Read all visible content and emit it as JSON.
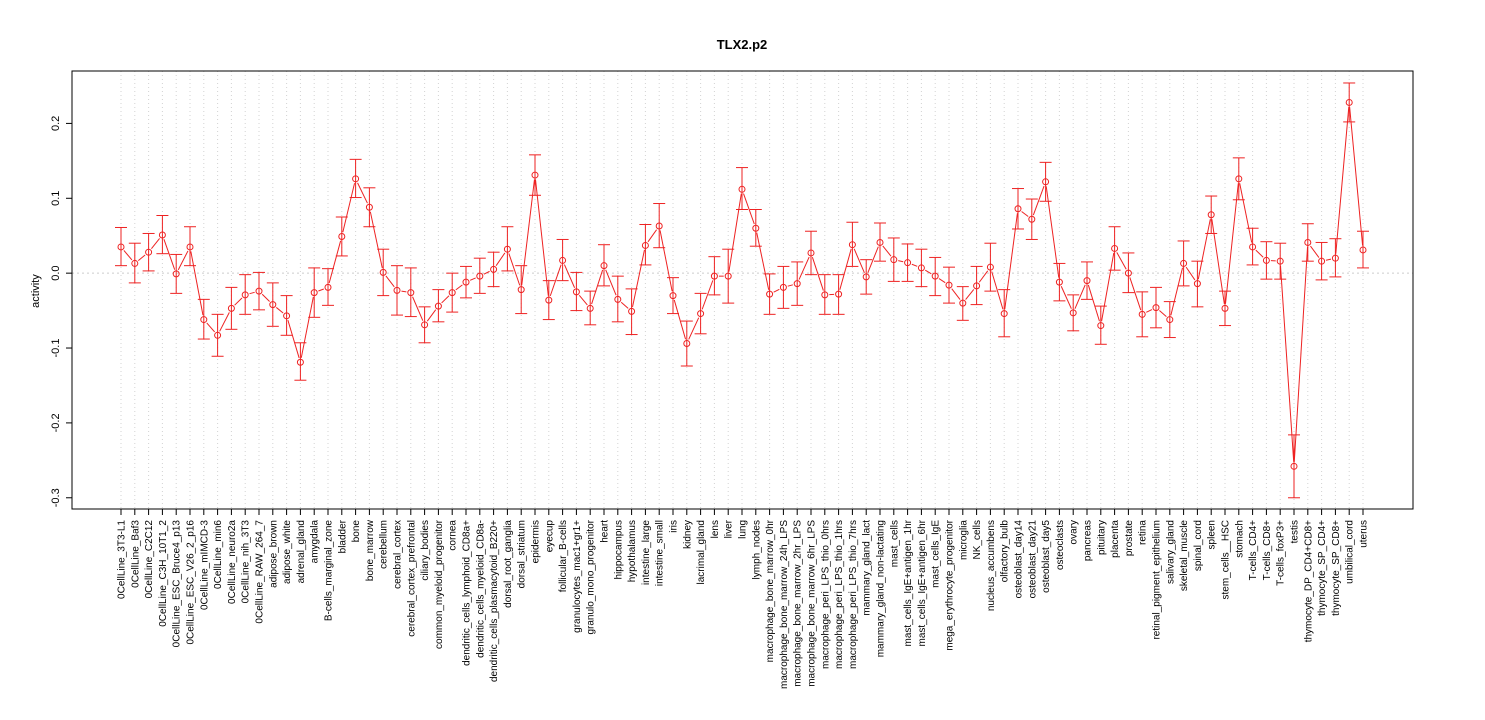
{
  "chart_data": {
    "type": "line",
    "title": "TLX2.p2",
    "xlabel": "",
    "ylabel": "activity",
    "ylim": [
      -0.315,
      0.27
    ],
    "yticks": [
      -0.3,
      -0.2,
      -0.1,
      0.0,
      0.1,
      0.2
    ],
    "ytick_labels": [
      "-0.3",
      "-0.2",
      "-0.1",
      "0.0",
      "0.1",
      "0.2"
    ],
    "grid": "vertical dotted per category",
    "reference_line": 0.0,
    "line_color": "#ee2222",
    "categories": [
      "0CellLine_3T3-L1",
      "0CellLine_Baf3",
      "0CellLine_C2C12",
      "0CellLine_C3H_10T1_2",
      "0CellLine_ESC_Bruce4_p13",
      "0CellLine_ESC_V26_2_p16",
      "0CellLine_mIMCD-3",
      "0CellLine_min6",
      "0CellLine_neuro2a",
      "0CellLine_nih_3T3",
      "0CellLine_RAW_264_7",
      "adipose_brown",
      "adipose_white",
      "adrenal_gland",
      "amygdala",
      "B-cells_marginal_zone",
      "bladder",
      "bone",
      "bone_marrow",
      "cerebellum",
      "cerebral_cortex",
      "cerebral_cortex_prefrontal",
      "ciliary_bodies",
      "common_myeloid_progenitor",
      "cornea",
      "dendritic_cells_lymphoid_CD8a+",
      "dendritic_cells_myeloid_CD8a-",
      "dendritic_cells_plasmacytoid_B220+",
      "dorsal_root_ganglia",
      "dorsal_striatum",
      "epidermis",
      "eyecup",
      "follicular_B-cells",
      "granulocytes_mac1+gr1+",
      "granulo_mono_progenitor",
      "heart",
      "hippocampus",
      "hypothalamus",
      "intestine_large",
      "intestine_small",
      "iris",
      "kidney",
      "lacrimal_gland",
      "lens",
      "liver",
      "lung",
      "lymph_nodes",
      "macrophage_bone_marrow_0hr",
      "macrophage_bone_marrow_24h_LPS",
      "macrophage_bone_marrow_2hr_LPS",
      "macrophage_bone_marrow_6hr_LPS",
      "macrophage_peri_LPS_thio_0hrs",
      "macrophage_peri_LPS_thio_1hrs",
      "macrophage_peri_LPS_thio_7hrs",
      "mammary_gland_lact",
      "mammary_gland_non-lactating",
      "mast_cells",
      "mast_cells_IgE+antigen_1hr",
      "mast_cells_IgE+antigen_6hr",
      "mast_cells_IgE",
      "mega_erythrocyte_progenitor",
      "microglia",
      "NK_cells",
      "nucleus_accumbens",
      "olfactory_bulb",
      "osteoblast_day14",
      "osteoblast_day21",
      "osteoblast_day5",
      "osteoclasts",
      "ovary",
      "pancreas",
      "pituitary",
      "placenta",
      "prostate",
      "retina",
      "retinal_pigment_epithelium",
      "salivary_gland",
      "skeletal_muscle",
      "spinal_cord",
      "spleen",
      "stem_cells__HSC",
      "stomach",
      "T-cells_CD4+",
      "T-cells_CD8+",
      "T-cells_foxP3+",
      "testis",
      "thymocyte_DP_CD4+CD8+",
      "thymocyte_SP_CD4+",
      "thymocyte_SP_CD8+",
      "umbilical_cord",
      "uterus"
    ],
    "series": [
      {
        "values": [
          0.035,
          0.013,
          0.028,
          0.051,
          -0.001,
          0.035,
          -0.062,
          -0.083,
          -0.047,
          -0.029,
          -0.024,
          -0.042,
          -0.057,
          -0.119,
          -0.026,
          -0.019,
          0.049,
          0.126,
          0.088,
          0.001,
          -0.023,
          -0.026,
          -0.069,
          -0.044,
          -0.026,
          -0.012,
          -0.004,
          0.005,
          0.032,
          -0.022,
          0.131,
          -0.036,
          0.017,
          -0.025,
          -0.047,
          0.01,
          -0.035,
          -0.051,
          0.037,
          0.063,
          -0.03,
          -0.094,
          -0.054,
          -0.004,
          -0.004,
          0.112,
          0.06,
          -0.028,
          -0.019,
          -0.014,
          0.027,
          -0.029,
          -0.028,
          0.038,
          -0.005,
          0.041,
          0.018,
          0.014,
          0.007,
          -0.004,
          -0.016,
          -0.04,
          -0.017,
          0.008,
          -0.054,
          0.086,
          0.072,
          0.122,
          -0.012,
          -0.053,
          -0.01,
          -0.07,
          0.033,
          0.0,
          -0.055,
          -0.046,
          -0.062,
          0.013,
          -0.014,
          0.078,
          -0.047,
          0.126,
          0.035,
          0.017,
          0.016,
          -0.258,
          0.041,
          0.016,
          0.02,
          0.228,
          0.031
        ],
        "lower": [
          0.01,
          -0.013,
          0.003,
          0.026,
          -0.027,
          0.01,
          -0.088,
          -0.111,
          -0.075,
          -0.055,
          -0.049,
          -0.071,
          -0.083,
          -0.143,
          -0.059,
          -0.043,
          0.023,
          0.101,
          0.062,
          -0.03,
          -0.056,
          -0.058,
          -0.093,
          -0.065,
          -0.052,
          -0.033,
          -0.027,
          -0.018,
          0.003,
          -0.054,
          0.104,
          -0.062,
          -0.01,
          -0.05,
          -0.069,
          -0.017,
          -0.065,
          -0.082,
          0.011,
          0.034,
          -0.054,
          -0.124,
          -0.081,
          -0.029,
          -0.04,
          0.085,
          0.036,
          -0.055,
          -0.047,
          -0.043,
          -0.002,
          -0.055,
          -0.055,
          0.009,
          -0.028,
          0.016,
          -0.011,
          -0.011,
          -0.018,
          -0.03,
          -0.04,
          -0.063,
          -0.042,
          -0.024,
          -0.085,
          0.059,
          0.045,
          0.096,
          -0.037,
          -0.077,
          -0.035,
          -0.095,
          0.004,
          -0.026,
          -0.085,
          -0.073,
          -0.086,
          -0.017,
          -0.045,
          0.053,
          -0.07,
          0.098,
          0.011,
          -0.008,
          -0.008,
          -0.3,
          0.016,
          -0.009,
          -0.005,
          0.202,
          0.007
        ],
        "upper": [
          0.061,
          0.04,
          0.053,
          0.077,
          0.025,
          0.062,
          -0.035,
          -0.055,
          -0.019,
          -0.002,
          0.001,
          -0.013,
          -0.03,
          -0.093,
          0.007,
          0.006,
          0.075,
          0.152,
          0.114,
          0.032,
          0.01,
          0.007,
          -0.045,
          -0.022,
          0.0,
          0.009,
          0.02,
          0.028,
          0.062,
          0.01,
          0.158,
          -0.01,
          0.045,
          0.001,
          -0.024,
          0.038,
          -0.004,
          -0.021,
          0.065,
          0.093,
          -0.006,
          -0.064,
          -0.027,
          0.022,
          0.032,
          0.141,
          0.085,
          -0.001,
          0.009,
          0.015,
          0.056,
          -0.002,
          -0.002,
          0.068,
          0.018,
          0.067,
          0.047,
          0.039,
          0.032,
          0.021,
          0.008,
          -0.018,
          0.009,
          0.04,
          -0.022,
          0.113,
          0.099,
          0.148,
          0.013,
          -0.029,
          0.015,
          -0.044,
          0.062,
          0.027,
          -0.025,
          -0.019,
          -0.038,
          0.043,
          0.016,
          0.103,
          -0.024,
          0.154,
          0.06,
          0.042,
          0.04,
          -0.216,
          0.066,
          0.041,
          0.046,
          0.254,
          0.056
        ]
      }
    ]
  }
}
